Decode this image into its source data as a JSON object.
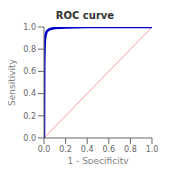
{
  "chart_data": {
    "type": "line",
    "title": "ROC curve",
    "xlabel": "1 - Specificity",
    "ylabel": "Sensitivity",
    "xlim": [
      0.0,
      1.0
    ],
    "ylim": [
      0.0,
      1.0
    ],
    "xticks": [
      {
        "value": 0.0,
        "label": "0.0"
      },
      0.2,
      0.4,
      0.6,
      0.8,
      {
        "value": 1.0,
        "label": "1.0"
      }
    ],
    "yticks": [
      {
        "value": 0.0,
        "label": "0.0"
      },
      0.2,
      0.4,
      0.6,
      0.8,
      {
        "value": 1.0,
        "label": "1.0"
      }
    ],
    "grid": false,
    "series": [
      {
        "x": [
          0,
          1
        ],
        "values": [
          0,
          1
        ],
        "color": "#FF9999"
      },
      {
        "x": [
          0.0,
          0.001,
          0.002,
          0.003,
          0.005,
          0.007,
          0.01,
          0.015,
          0.02,
          0.025,
          0.03,
          0.04,
          0.05,
          0.06,
          0.08,
          0.1,
          0.15,
          0.2,
          0.3,
          0.4,
          0.5,
          0.6,
          0.7,
          0.8,
          0.9,
          0.95,
          1.0
        ],
        "values": [
          0.0,
          0.3,
          0.55,
          0.7,
          0.8,
          0.855,
          0.895,
          0.925,
          0.945,
          0.958,
          0.965,
          0.972,
          0.978,
          0.982,
          0.987,
          0.99,
          0.994,
          0.996,
          0.998,
          0.999,
          0.999,
          1.0,
          1.0,
          1.0,
          1.0,
          1.0,
          1.0
        ],
        "color": "#0000CC"
      }
    ]
  }
}
